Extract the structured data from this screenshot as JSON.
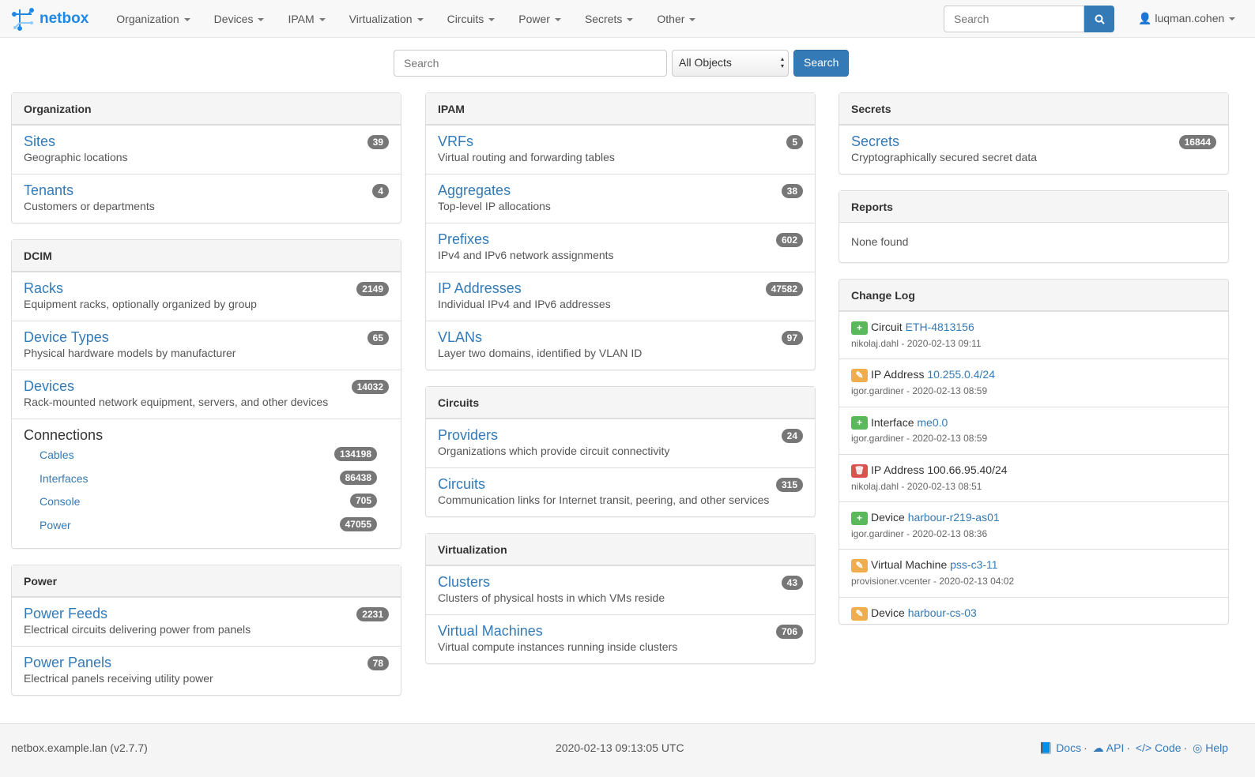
{
  "nav": {
    "brand": "netbox",
    "menu": [
      "Organization",
      "Devices",
      "IPAM",
      "Virtualization",
      "Circuits",
      "Power",
      "Secrets",
      "Other"
    ],
    "search_placeholder": "Search",
    "user": "luqman.cohen"
  },
  "search": {
    "placeholder": "Search",
    "scope": "All Objects",
    "button": "Search"
  },
  "columns": [
    [
      {
        "title": "Organization",
        "rows": [
          {
            "t": "Sites",
            "d": "Geographic locations",
            "n": "39"
          },
          {
            "t": "Tenants",
            "d": "Customers or departments",
            "n": "4"
          }
        ]
      },
      {
        "title": "DCIM",
        "rows": [
          {
            "t": "Racks",
            "d": "Equipment racks, optionally organized by group",
            "n": "2149"
          },
          {
            "t": "Device Types",
            "d": "Physical hardware models by manufacturer",
            "n": "65"
          },
          {
            "t": "Devices",
            "d": "Rack-mounted network equipment, servers, and other devices",
            "n": "14032"
          }
        ],
        "connections": {
          "title": "Connections",
          "items": [
            {
              "t": "Cables",
              "n": "134198"
            },
            {
              "t": "Interfaces",
              "n": "86438"
            },
            {
              "t": "Console",
              "n": "705"
            },
            {
              "t": "Power",
              "n": "47055"
            }
          ]
        }
      },
      {
        "title": "Power",
        "rows": [
          {
            "t": "Power Feeds",
            "d": "Electrical circuits delivering power from panels",
            "n": "2231"
          },
          {
            "t": "Power Panels",
            "d": "Electrical panels receiving utility power",
            "n": "78"
          }
        ]
      }
    ],
    [
      {
        "title": "IPAM",
        "rows": [
          {
            "t": "VRFs",
            "d": "Virtual routing and forwarding tables",
            "n": "5"
          },
          {
            "t": "Aggregates",
            "d": "Top-level IP allocations",
            "n": "38"
          },
          {
            "t": "Prefixes",
            "d": "IPv4 and IPv6 network assignments",
            "n": "602"
          },
          {
            "t": "IP Addresses",
            "d": "Individual IPv4 and IPv6 addresses",
            "n": "47582"
          },
          {
            "t": "VLANs",
            "d": "Layer two domains, identified by VLAN ID",
            "n": "97"
          }
        ]
      },
      {
        "title": "Circuits",
        "rows": [
          {
            "t": "Providers",
            "d": "Organizations which provide circuit connectivity",
            "n": "24"
          },
          {
            "t": "Circuits",
            "d": "Communication links for Internet transit, peering, and other services",
            "n": "315"
          }
        ]
      },
      {
        "title": "Virtualization",
        "rows": [
          {
            "t": "Clusters",
            "d": "Clusters of physical hosts in which VMs reside",
            "n": "43"
          },
          {
            "t": "Virtual Machines",
            "d": "Virtual compute instances running inside clusters",
            "n": "706"
          }
        ]
      }
    ],
    [
      {
        "title": "Secrets",
        "rows": [
          {
            "t": "Secrets",
            "d": "Cryptographically secured secret data",
            "n": "16844"
          }
        ]
      },
      {
        "title": "Reports",
        "none": "None found"
      },
      {
        "title": "Change Log",
        "log": [
          {
            "action": "create",
            "type": "Circuit",
            "obj": "ETH-4813156",
            "link": true,
            "meta": "nikolaj.dahl - 2020-02-13 09:11"
          },
          {
            "action": "update",
            "type": "IP Address",
            "obj": "10.255.0.4/24",
            "link": true,
            "meta": "igor.gardiner - 2020-02-13 08:59"
          },
          {
            "action": "create",
            "type": "Interface",
            "obj": "me0.0",
            "link": true,
            "meta": "igor.gardiner - 2020-02-13 08:59"
          },
          {
            "action": "delete",
            "type": "IP Address",
            "obj": "100.66.95.40/24",
            "link": false,
            "meta": "nikolaj.dahl - 2020-02-13 08:51"
          },
          {
            "action": "create",
            "type": "Device",
            "obj": "harbour-r219-as01",
            "link": true,
            "meta": "igor.gardiner - 2020-02-13 08:36"
          },
          {
            "action": "update",
            "type": "Virtual Machine",
            "obj": "pss-c3-11",
            "link": true,
            "meta": "provisioner.vcenter - 2020-02-13 04:02"
          },
          {
            "action": "update",
            "type": "Device",
            "obj": "harbour-cs-03",
            "link": true,
            "meta": ""
          }
        ]
      }
    ]
  ],
  "colors": {
    "create": "#5cb85c",
    "update": "#f0ad4e",
    "delete": "#d9534f",
    "link": "#337ab7"
  },
  "footer": {
    "host": "netbox.example.lan (v2.7.7)",
    "time": "2020-02-13 09:13:05 UTC",
    "links": [
      "Docs",
      "API",
      "Code",
      "Help"
    ]
  }
}
